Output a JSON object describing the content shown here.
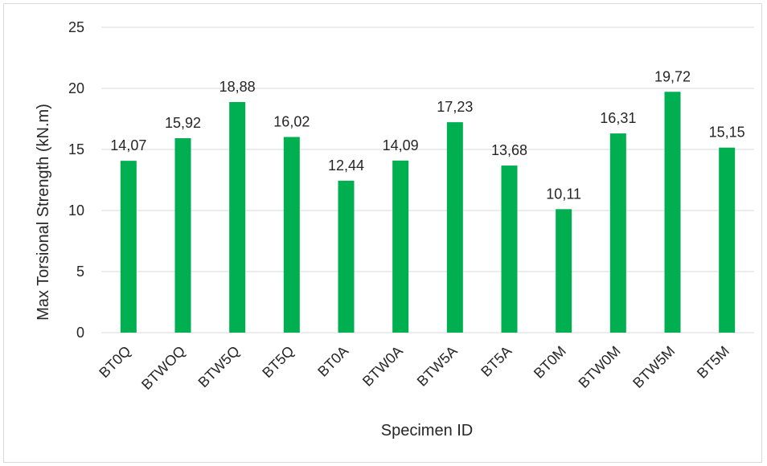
{
  "chart_data": {
    "type": "bar",
    "categories": [
      "BT0Q",
      "BTWOQ",
      "BTW5Q",
      "BT5Q",
      "BT0A",
      "BTW0A",
      "BTW5A",
      "BT5A",
      "BT0M",
      "BTW0M",
      "BTW5M",
      "BT5M"
    ],
    "values": [
      14.07,
      15.92,
      18.88,
      16.02,
      12.44,
      14.09,
      17.23,
      13.68,
      10.11,
      16.31,
      19.72,
      15.15
    ],
    "data_labels": [
      "14,07",
      "15,92",
      "18,88",
      "16,02",
      "12,44",
      "14,09",
      "17,23",
      "13,68",
      "10,11",
      "16,31",
      "19,72",
      "15,15"
    ],
    "yticks": [
      0,
      5,
      10,
      15,
      20,
      25
    ],
    "ylim": [
      0,
      25
    ],
    "xlabel": "Specimen ID",
    "ylabel": "Max Torsional Strength (kN.m)",
    "grid": true,
    "legend": "none",
    "bar_color": "#00b050",
    "grid_color": "#d9d9d9"
  }
}
